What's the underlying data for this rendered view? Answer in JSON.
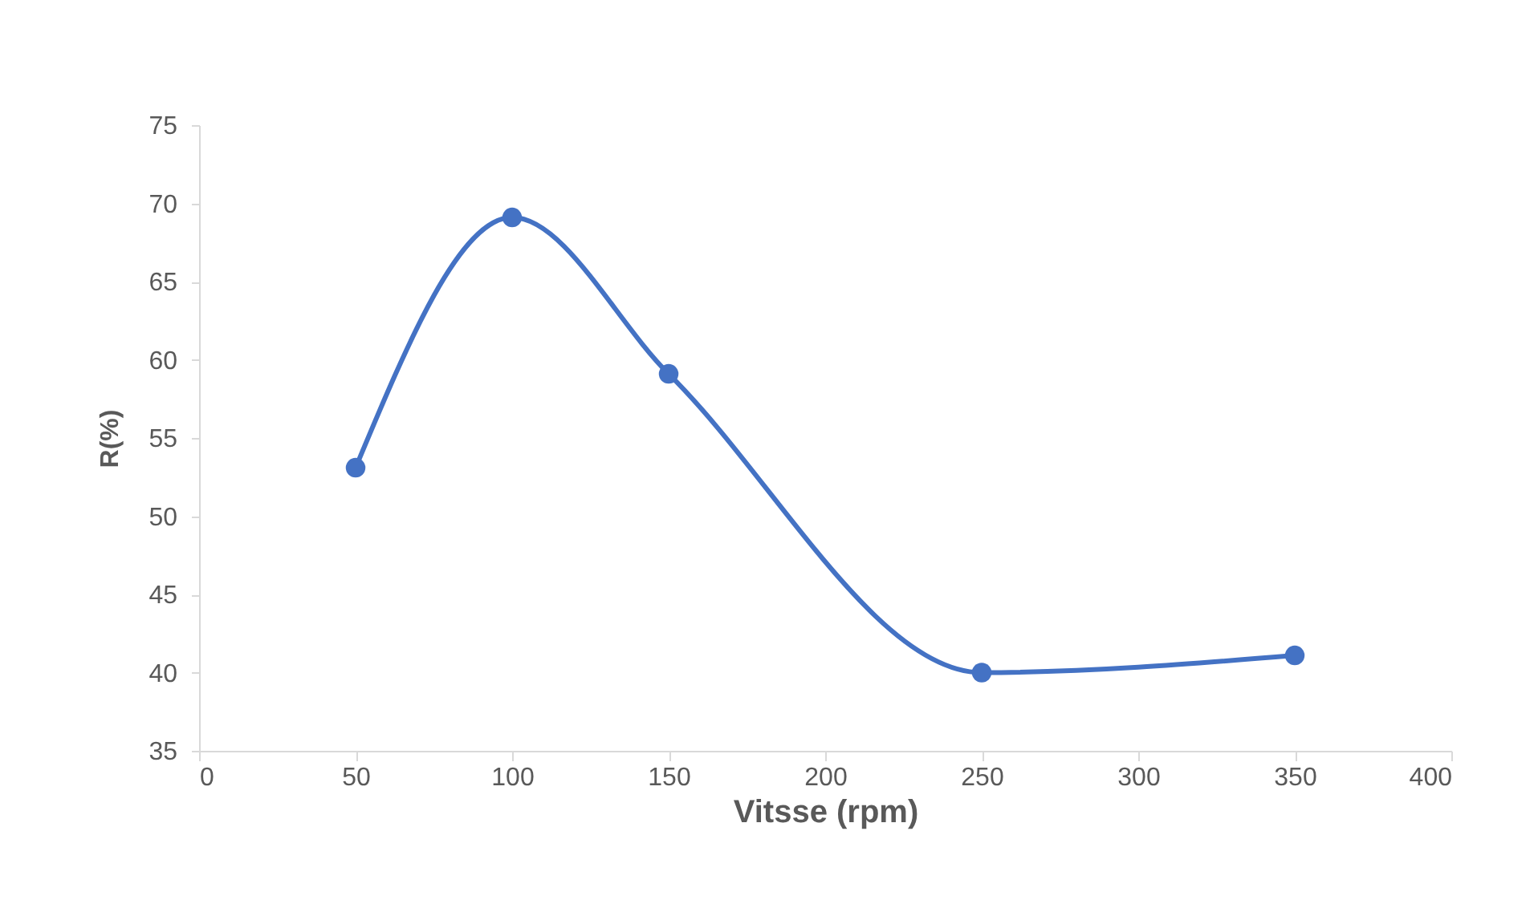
{
  "chart_data": {
    "type": "line",
    "xlabel": "Vitsse (rpm)",
    "ylabel": "R(%)",
    "x": [
      50,
      100,
      150,
      250,
      350
    ],
    "series": [
      {
        "color": "#4472c4",
        "values": [
          53.1,
          69.1,
          59.1,
          40,
          41.1
        ]
      }
    ],
    "xlim": [
      0,
      400
    ],
    "xticks": [
      0,
      50,
      100,
      150,
      200,
      250,
      300,
      350,
      400
    ],
    "ylim": [
      35,
      75
    ],
    "yticks": [
      35,
      40,
      45,
      50,
      55,
      60,
      65,
      70,
      75
    ],
    "grid": false,
    "marker": "circle",
    "line_style": "solid"
  }
}
